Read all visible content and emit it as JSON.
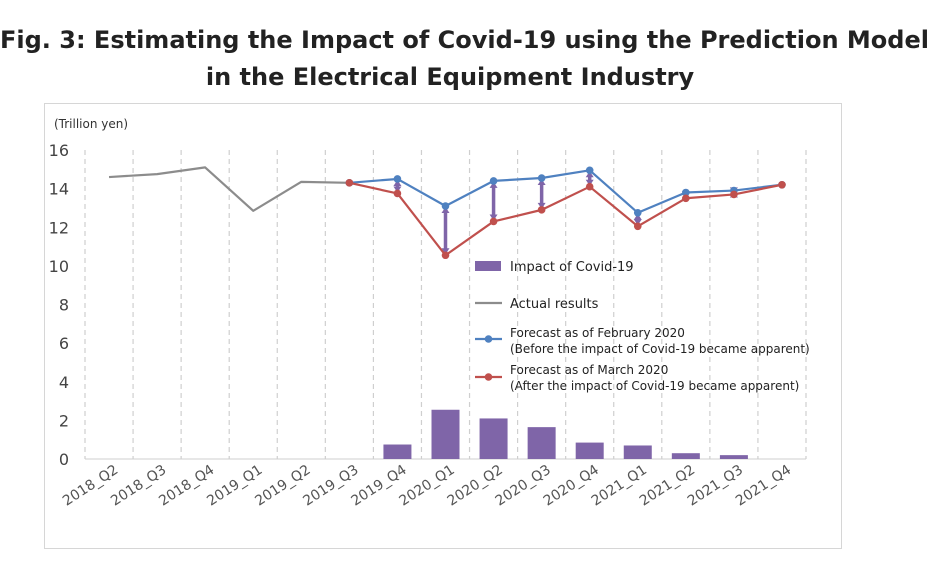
{
  "figure": {
    "title_line1": "Fig. 3: Estimating the Impact of Covid-19 using the Prediction Model",
    "title_line2": "in the Electrical Equipment Industry"
  },
  "chart_data": {
    "type": "line",
    "title": "Fig. 3: Estimating the Impact of Covid-19 using the Prediction Model in the Electrical Equipment Industry",
    "ylabel": "(Trillion yen)",
    "xlabel": "",
    "ylim": [
      0,
      16
    ],
    "yticks": [
      0,
      2,
      4,
      6,
      8,
      10,
      12,
      14,
      16
    ],
    "grid": "vertical dashed",
    "legend_position": "center-right",
    "categories": [
      "2018_Q2",
      "2018_Q3",
      "2018_Q4",
      "2019_Q1",
      "2019_Q2",
      "2019_Q3",
      "2019_Q4",
      "2020_Q1",
      "2020_Q2",
      "2020_Q3",
      "2020_Q4",
      "2021_Q1",
      "2021_Q2",
      "2021_Q3",
      "2021_Q4"
    ],
    "series": [
      {
        "name": "Impact of Covid-19",
        "kind": "bar",
        "color": "#7f65a8",
        "values": [
          null,
          null,
          null,
          null,
          null,
          null,
          0.75,
          2.55,
          2.1,
          1.65,
          0.85,
          0.7,
          0.3,
          0.2,
          null
        ]
      },
      {
        "name": "Actual results",
        "kind": "line",
        "color": "#8c8c8c",
        "values": [
          14.6,
          14.75,
          15.1,
          12.85,
          14.35,
          14.3,
          null,
          null,
          null,
          null,
          null,
          null,
          null,
          null,
          null
        ]
      },
      {
        "name": "Forecast as of February 2020",
        "subtitle": "(Before the impact of Covid-19 became apparent)",
        "kind": "line-marker",
        "color": "#4f81c0",
        "values": [
          null,
          null,
          null,
          null,
          null,
          14.3,
          14.5,
          13.1,
          14.4,
          14.55,
          14.95,
          12.75,
          13.8,
          13.9,
          14.2
        ]
      },
      {
        "name": "Forecast as of March 2020",
        "subtitle": "(After the impact of Covid-19 became apparent)",
        "kind": "line-marker",
        "color": "#c0504d",
        "values": [
          null,
          null,
          null,
          null,
          null,
          14.3,
          13.75,
          10.55,
          12.3,
          12.9,
          14.1,
          12.05,
          13.5,
          13.7,
          14.2
        ]
      }
    ]
  }
}
